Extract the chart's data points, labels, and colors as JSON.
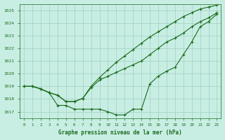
{
  "title": "Graphe pression niveau de la mer (hPa)",
  "bg_color": "#c8eee4",
  "grid_color": "#a0cfc0",
  "line_color": "#1a6b1a",
  "xlim": [
    -0.5,
    23.5
  ],
  "ylim": [
    1016.5,
    1025.5
  ],
  "yticks": [
    1017,
    1018,
    1019,
    1020,
    1021,
    1022,
    1023,
    1024,
    1025
  ],
  "xticks": [
    0,
    1,
    2,
    3,
    4,
    5,
    6,
    7,
    8,
    9,
    10,
    11,
    12,
    13,
    14,
    15,
    16,
    17,
    18,
    19,
    20,
    21,
    22,
    23
  ],
  "series1": [
    1019.0,
    1019.0,
    1018.8,
    1018.5,
    1017.5,
    1017.5,
    1017.2,
    1017.2,
    1017.2,
    1017.2,
    1017.0,
    1016.75,
    1016.75,
    1017.2,
    1017.2,
    1019.2,
    1019.8,
    1020.2,
    1020.5,
    1021.5,
    1022.5,
    1023.7,
    1024.1,
    1024.7
  ],
  "series2": [
    1019.0,
    1019.0,
    1018.8,
    1018.5,
    1018.3,
    1017.8,
    1017.8,
    1018.05,
    1018.9,
    1019.5,
    1019.8,
    1020.1,
    1020.4,
    1020.7,
    1021.0,
    1021.5,
    1022.0,
    1022.5,
    1022.8,
    1023.2,
    1023.7,
    1024.1,
    1024.4,
    1024.8
  ],
  "series3": [
    1019.0,
    1019.0,
    1018.8,
    1018.5,
    1018.3,
    1017.8,
    1017.8,
    1018.05,
    1019.0,
    1019.7,
    1020.3,
    1020.9,
    1021.4,
    1021.9,
    1022.4,
    1022.9,
    1023.3,
    1023.7,
    1024.1,
    1024.5,
    1024.8,
    1025.1,
    1025.25,
    1025.4
  ]
}
